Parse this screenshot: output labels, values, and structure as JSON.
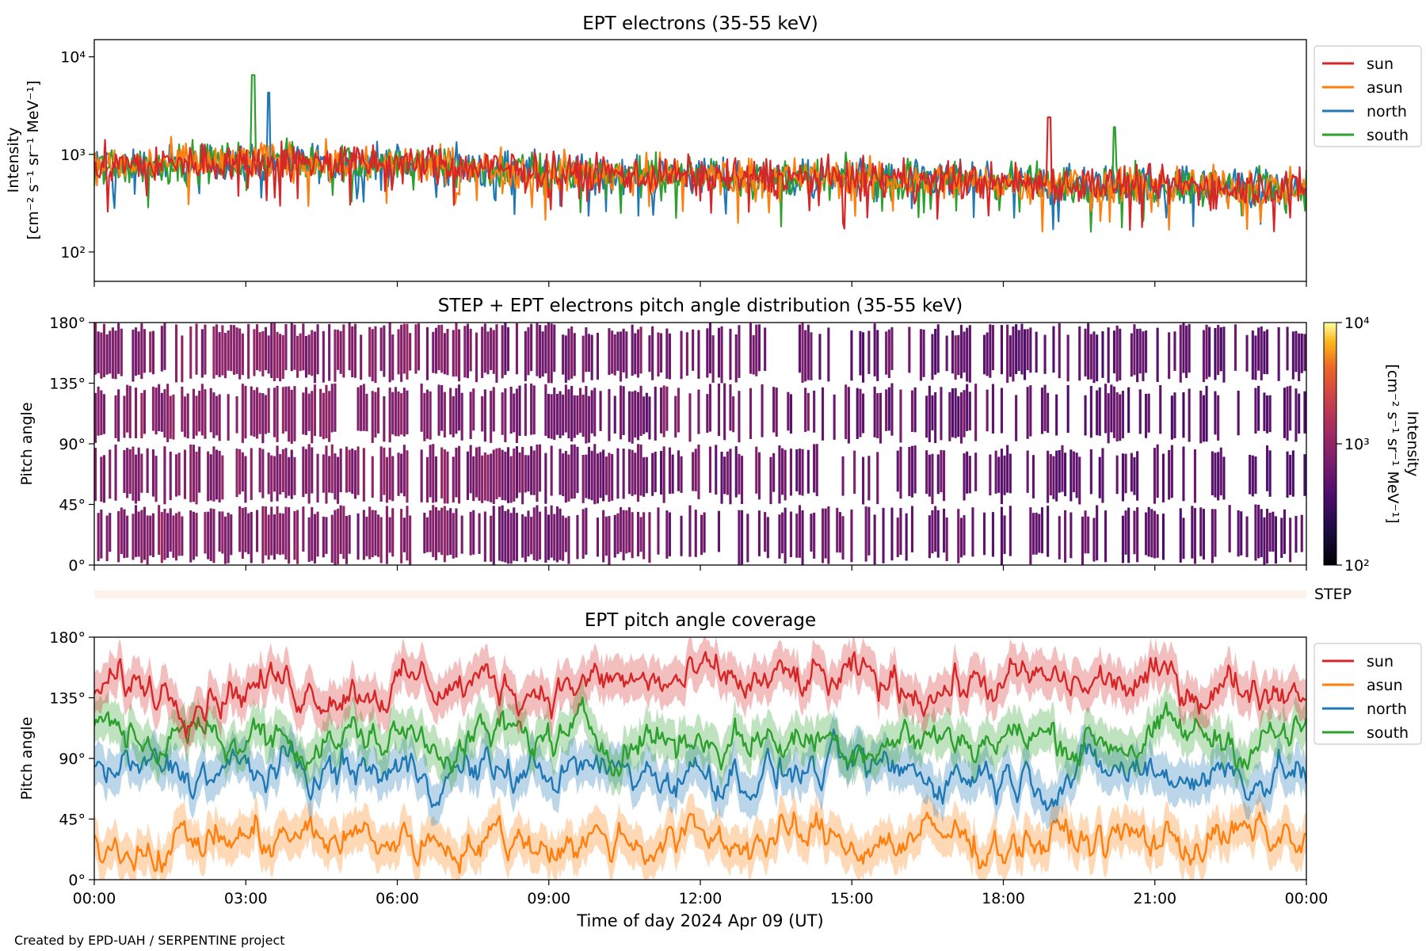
{
  "footer": {
    "credit": "Created by EPD-UAH / SERPENTINE project"
  },
  "colors": {
    "sun": "#d62728",
    "asun": "#ff7f0e",
    "north": "#1f77b4",
    "south": "#2ca02c"
  },
  "chart_data": [
    {
      "id": "intensity",
      "type": "line",
      "title": "EPT electrons (35-55 keV)",
      "ylabel": "Intensity",
      "yunit": "[cm⁻² s⁻¹ sr⁻¹ MeV⁻¹]",
      "yscale": "log",
      "ylim": [
        50,
        15000
      ],
      "yticks": [
        {
          "v": 100,
          "label": "10²"
        },
        {
          "v": 1000,
          "label": "10³"
        },
        {
          "v": 10000,
          "label": "10⁴"
        }
      ],
      "xlim": [
        0,
        24
      ],
      "legend": "outside-right",
      "series": [
        {
          "name": "sun",
          "color": "#d62728"
        },
        {
          "name": "asun",
          "color": "#ff7f0e"
        },
        {
          "name": "north",
          "color": "#1f77b4"
        },
        {
          "name": "south",
          "color": "#2ca02c"
        }
      ],
      "typical_level": {
        "hour": [
          0,
          3,
          6,
          9,
          12,
          15,
          18,
          21,
          24
        ],
        "value": [
          750,
          850,
          800,
          650,
          600,
          560,
          520,
          480,
          460
        ]
      },
      "notable_peaks": [
        {
          "series": "south",
          "hour": 3.15,
          "value": 6500
        },
        {
          "series": "north",
          "hour": 3.45,
          "value": 4300
        },
        {
          "series": "sun",
          "hour": 18.9,
          "value": 2400
        },
        {
          "series": "south",
          "hour": 20.2,
          "value": 1900
        }
      ]
    },
    {
      "id": "pad",
      "type": "heatmap",
      "title": "STEP + EPT electrons pitch angle distribution (35-55 keV)",
      "ylabel": "Pitch angle",
      "ylim": [
        0,
        180
      ],
      "yticks": [
        {
          "v": 0,
          "label": "0°"
        },
        {
          "v": 45,
          "label": "45°"
        },
        {
          "v": 90,
          "label": "90°"
        },
        {
          "v": 135,
          "label": "135°"
        },
        {
          "v": 180,
          "label": "180°"
        }
      ],
      "xlim": [
        0,
        24
      ],
      "colorbar": {
        "label": "Intensity",
        "unit": "[cm⁻² s⁻¹ sr⁻¹ MeV⁻¹]",
        "scale": "log",
        "range": [
          100,
          10000
        ],
        "ticks": [
          {
            "v": 100,
            "label": "10²"
          },
          {
            "v": 1000,
            "label": "10³"
          },
          {
            "v": 10000,
            "label": "10⁴"
          }
        ],
        "colormap": "inferno"
      },
      "step_strip_label": "STEP"
    },
    {
      "id": "coverage",
      "type": "line",
      "title": "EPT pitch angle coverage",
      "ylabel": "Pitch angle",
      "ylim": [
        0,
        180
      ],
      "yticks": [
        {
          "v": 0,
          "label": "0°"
        },
        {
          "v": 45,
          "label": "45°"
        },
        {
          "v": 90,
          "label": "90°"
        },
        {
          "v": 135,
          "label": "135°"
        },
        {
          "v": 180,
          "label": "180°"
        }
      ],
      "xlim": [
        0,
        24
      ],
      "xlabel": "Time of day 2024 Apr 09 (UT)",
      "xticks": [
        {
          "v": 0,
          "label": "00:00"
        },
        {
          "v": 3,
          "label": "03:00"
        },
        {
          "v": 6,
          "label": "06:00"
        },
        {
          "v": 9,
          "label": "09:00"
        },
        {
          "v": 12,
          "label": "12:00"
        },
        {
          "v": 15,
          "label": "15:00"
        },
        {
          "v": 18,
          "label": "18:00"
        },
        {
          "v": 21,
          "label": "21:00"
        },
        {
          "v": 24,
          "label": "00:00"
        }
      ],
      "legend": "outside-right",
      "series": [
        {
          "name": "sun",
          "color": "#d62728",
          "typical_pitch_angle": 145
        },
        {
          "name": "asun",
          "color": "#ff7f0e",
          "typical_pitch_angle": 30
        },
        {
          "name": "north",
          "color": "#1f77b4",
          "typical_pitch_angle": 80
        },
        {
          "name": "south",
          "color": "#2ca02c",
          "typical_pitch_angle": 105
        }
      ]
    }
  ]
}
